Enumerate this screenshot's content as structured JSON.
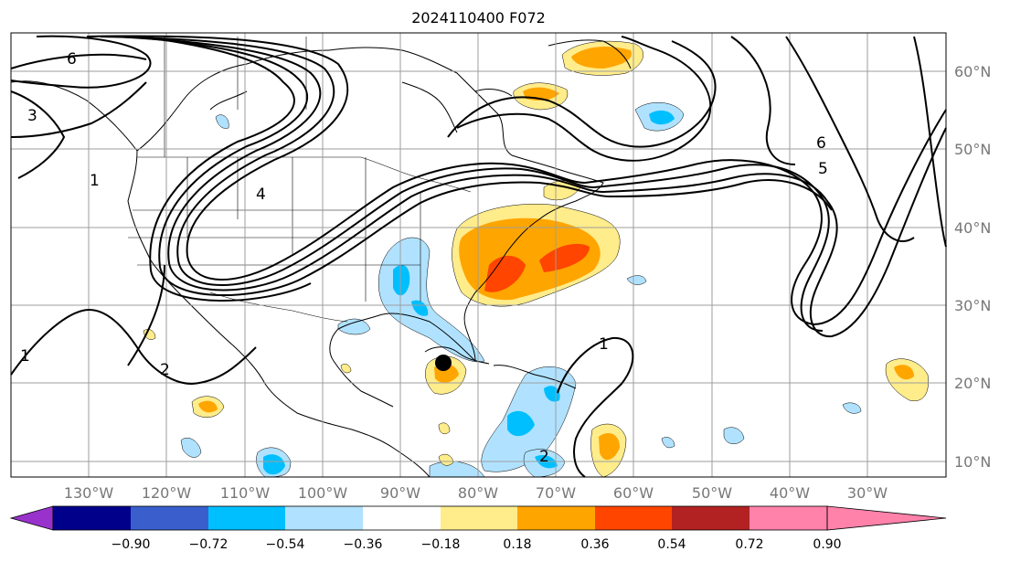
{
  "title": "2024110400 F072",
  "longitude_labels": [
    "130°W",
    "120°W",
    "110°W",
    "100°W",
    "90°W",
    "80°W",
    "70°W",
    "60°W",
    "50°W",
    "40°W",
    "30°W"
  ],
  "latitude_labels": [
    "60°N",
    "50°N",
    "40°N",
    "30°N",
    "20°N",
    "10°N"
  ],
  "colorbar": {
    "tick_labels": [
      "−0.90",
      "−0.72",
      "−0.54",
      "−0.36",
      "−0.18",
      "0.18",
      "0.36",
      "0.54",
      "0.72",
      "0.90"
    ],
    "colors": [
      "#9932cc",
      "#00008b",
      "#3a5fcd",
      "#00bfff",
      "#b0e2ff",
      "#ffffff",
      "#ffec8b",
      "#ffa500",
      "#ff4500",
      "#b22222",
      "#ff82ab"
    ]
  },
  "contour_labels": [
    "6",
    "3",
    "1",
    "2",
    "1",
    "6",
    "5",
    "2",
    "1",
    "4"
  ],
  "marker": {
    "type": "black-dot",
    "lon": -85.0,
    "lat": 22.5
  },
  "colors": {
    "grid": "#9e9e9e",
    "label": "#777777",
    "contour": "#000000"
  }
}
